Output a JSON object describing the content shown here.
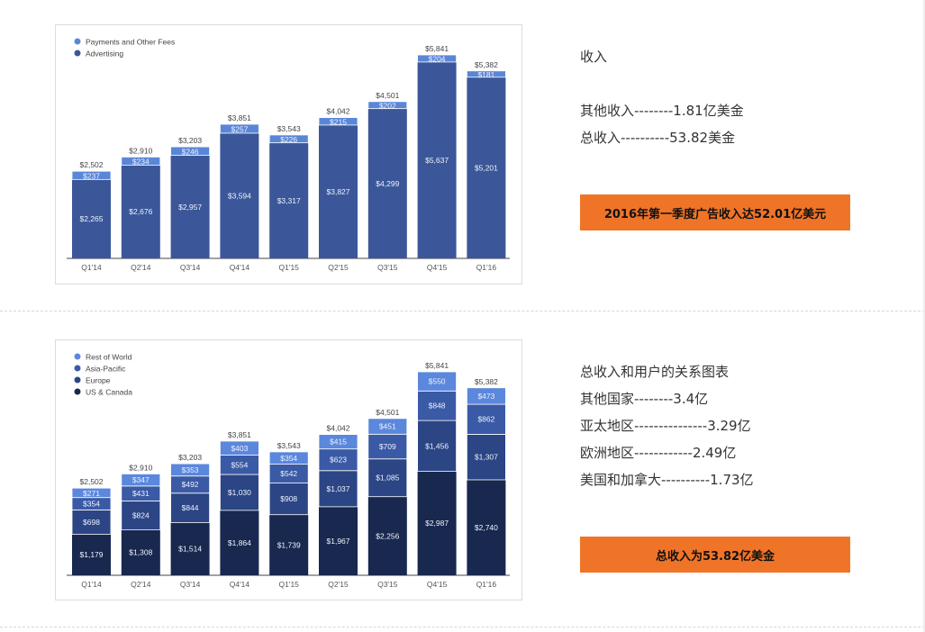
{
  "section1": {
    "title": "收入",
    "lines": [
      "其他收入--------1.81亿美金",
      "总收入----------53.82美金"
    ],
    "button": "2016年第一季度广告收入达52.01亿美元"
  },
  "section2": {
    "title": "总收入和用户的关系图表",
    "lines": [
      "其他国家--------3.4亿",
      "亚太地区---------------3.29亿",
      "欧洲地区------------2.49亿",
      "美国和加拿大----------1.73亿"
    ],
    "button": "总收入为53.82亿美金"
  },
  "chart_data": [
    {
      "type": "bar",
      "stacked": true,
      "categories": [
        "Q1'14",
        "Q2'14",
        "Q3'14",
        "Q4'14",
        "Q1'15",
        "Q2'15",
        "Q3'15",
        "Q4'15",
        "Q1'16"
      ],
      "totals": [
        "$2,502",
        "$2,910",
        "$3,203",
        "$3,851",
        "$3,543",
        "$4,042",
        "$4,501",
        "$5,841",
        "$5,382"
      ],
      "total_values": [
        2502,
        2910,
        3203,
        3851,
        3543,
        4042,
        4501,
        5841,
        5382
      ],
      "legend_position": "top-left",
      "series": [
        {
          "name": "Advertising",
          "color": "#3b5799",
          "values": [
            2265,
            2676,
            2957,
            3594,
            3317,
            3827,
            4299,
            5637,
            5201
          ],
          "labels": [
            "$2,265",
            "$2,676",
            "$2,957",
            "$3,594",
            "$3,317",
            "$3,827",
            "$4,299",
            "$5,637",
            "$5,201"
          ]
        },
        {
          "name": "Payments and Other Fees",
          "color": "#5a86d8",
          "values": [
            237,
            234,
            246,
            257,
            226,
            215,
            202,
            204,
            181
          ],
          "labels": [
            "$237",
            "$234",
            "$246",
            "$257",
            "$226",
            "$215",
            "$202",
            "$204",
            "$181"
          ]
        }
      ],
      "legend_order": [
        1,
        0
      ],
      "ylim": [
        0,
        6000
      ]
    },
    {
      "type": "bar",
      "stacked": true,
      "categories": [
        "Q1'14",
        "Q2'14",
        "Q3'14",
        "Q4'14",
        "Q1'15",
        "Q2'15",
        "Q3'15",
        "Q4'15",
        "Q1'16"
      ],
      "totals": [
        "$2,502",
        "$2,910",
        "$3,203",
        "$3,851",
        "$3,543",
        "$4,042",
        "$4,501",
        "$5,841",
        "$5,382"
      ],
      "total_values": [
        2502,
        2910,
        3203,
        3851,
        3543,
        4042,
        4501,
        5841,
        5382
      ],
      "legend_position": "top-left",
      "series": [
        {
          "name": "US & Canada",
          "color": "#18284f",
          "values": [
            1179,
            1308,
            1514,
            1864,
            1739,
            1967,
            2256,
            2987,
            2740
          ],
          "labels": [
            "$1,179",
            "$1,308",
            "$1,514",
            "$1,864",
            "$1,739",
            "$1,967",
            "$2,256",
            "$2,987",
            "$2,740"
          ]
        },
        {
          "name": "Europe",
          "color": "#2b4585",
          "values": [
            698,
            824,
            844,
            1030,
            908,
            1037,
            1085,
            1456,
            1307
          ],
          "labels": [
            "$698",
            "$824",
            "$844",
            "$1,030",
            "$908",
            "$1,037",
            "$1,085",
            "$1,456",
            "$1,307"
          ]
        },
        {
          "name": "Asia-Pacific",
          "color": "#3a5aa6",
          "values": [
            354,
            431,
            492,
            554,
            542,
            623,
            709,
            848,
            862
          ],
          "labels": [
            "$354",
            "$431",
            "$492",
            "$554",
            "$542",
            "$623",
            "$709",
            "$848",
            "$862"
          ]
        },
        {
          "name": "Rest of World",
          "color": "#5b87dc",
          "values": [
            271,
            347,
            353,
            403,
            354,
            415,
            451,
            550,
            473
          ],
          "labels": [
            "$271",
            "$347",
            "$353",
            "$403",
            "$354",
            "$415",
            "$451",
            "$550",
            "$473"
          ]
        }
      ],
      "legend_order": [
        3,
        2,
        1,
        0
      ],
      "ylim": [
        0,
        6000
      ]
    }
  ]
}
